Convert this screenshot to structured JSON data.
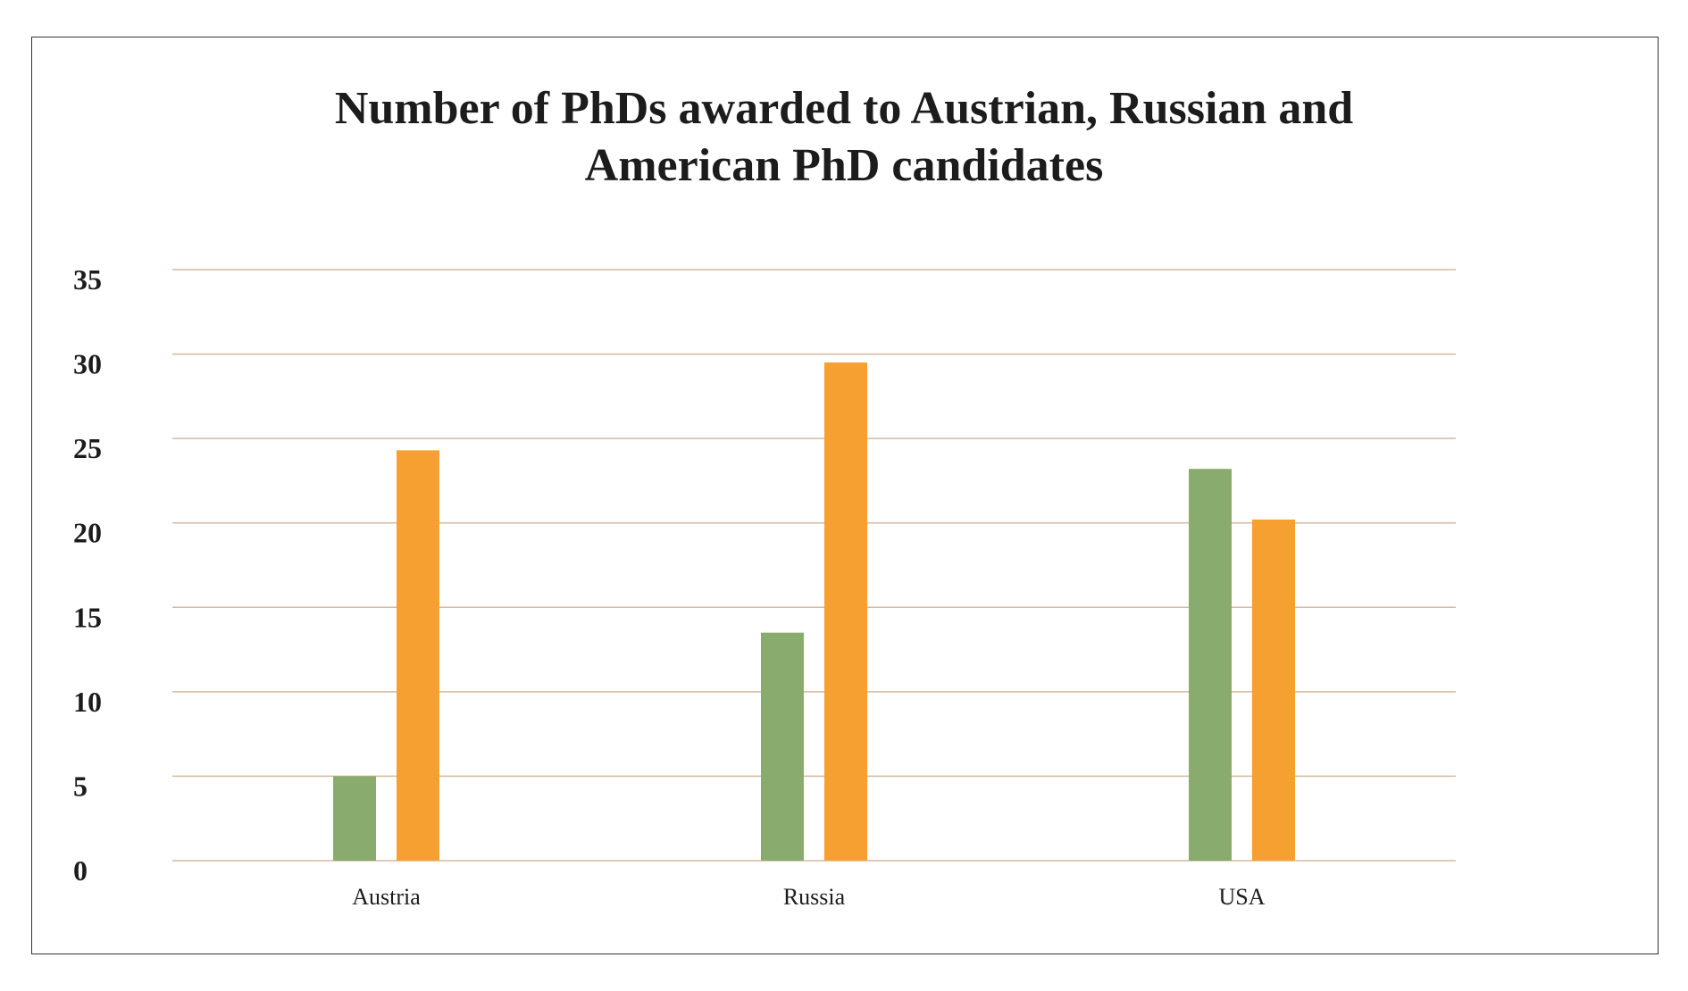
{
  "chart_data": {
    "type": "bar",
    "title_lines": [
      "Number of PhDs awarded to Austrian, Russian and",
      "American PhD candidates"
    ],
    "categories": [
      "Austria",
      "Russia",
      "USA"
    ],
    "series": [
      {
        "values": [
          5,
          13.5,
          23.2
        ],
        "color": "#8aab6e"
      },
      {
        "values": [
          24.3,
          29.5,
          20.2
        ],
        "color": "#f5a030"
      }
    ],
    "xlabel": "",
    "ylabel": "",
    "ylim": [
      0,
      35
    ],
    "yticks": [
      0,
      5,
      10,
      15,
      20,
      25,
      30,
      35
    ],
    "grid": true,
    "gridColor": "#d6b9a0"
  }
}
